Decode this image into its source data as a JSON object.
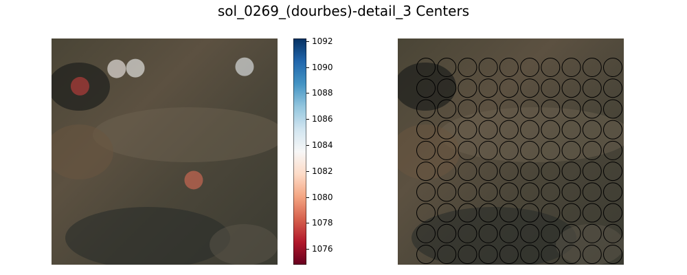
{
  "title": "sol_0269_(dourbes)-detail_3 Centers",
  "chart_data": [
    {
      "type": "scatter",
      "panel": "left",
      "description_of_background": "photographic painting detail",
      "xlim": [
        0,
        100
      ],
      "ylim": [
        0,
        100
      ],
      "points": [
        {
          "x": 12.6,
          "y": 21.1,
          "value": 1077.5
        },
        {
          "x": 28.8,
          "y": 13.4,
          "value": 1083.3
        },
        {
          "x": 37.1,
          "y": 13.1,
          "value": 1083.6
        },
        {
          "x": 85.4,
          "y": 12.5,
          "value": 1084.0
        },
        {
          "x": 62.9,
          "y": 62.6,
          "value": 1078.6
        }
      ],
      "colormap": "RdBu",
      "colorbar": {
        "vmin": 1074.8,
        "vmax": 1092.2,
        "ticks": [
          1076,
          1078,
          1080,
          1082,
          1084,
          1086,
          1088,
          1090,
          1092
        ]
      }
    },
    {
      "type": "scatter",
      "panel": "right",
      "grid_rows": 10,
      "grid_cols": 10,
      "marker": "open-circle",
      "xlim": [
        0,
        100
      ],
      "ylim": [
        0,
        100
      ]
    }
  ],
  "colors": {
    "circle_stroke": "#000000",
    "point_alpha": "0.6"
  }
}
